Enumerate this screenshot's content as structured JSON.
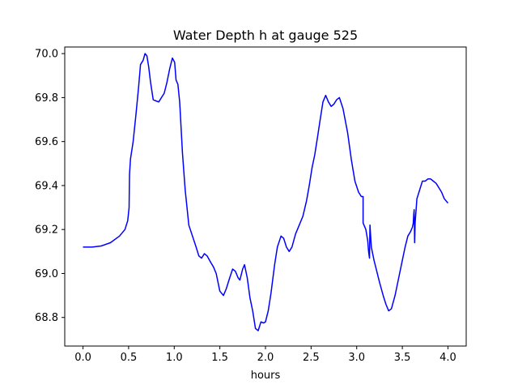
{
  "chart_data": {
    "type": "line",
    "title": "Water Depth h at gauge 525",
    "xlabel": "hours",
    "ylabel": "",
    "xlim": [
      -0.2,
      4.2
    ],
    "ylim": [
      68.67,
      70.03
    ],
    "x_ticks": [
      0.0,
      0.5,
      1.0,
      1.5,
      2.0,
      2.5,
      3.0,
      3.5,
      4.0
    ],
    "x_tick_labels": [
      "0.0",
      "0.5",
      "1.0",
      "1.5",
      "2.0",
      "2.5",
      "3.0",
      "3.5",
      "4.0"
    ],
    "y_ticks": [
      68.8,
      69.0,
      69.2,
      69.4,
      69.6,
      69.8,
      70.0
    ],
    "y_tick_labels": [
      "68.8",
      "69.0",
      "69.2",
      "69.4",
      "69.6",
      "69.8",
      "70.0"
    ],
    "grid": false,
    "series": [
      {
        "color": "#0000ff",
        "x": [
          0.0,
          0.1,
          0.2,
          0.3,
          0.4,
          0.46,
          0.49,
          0.505,
          0.51,
          0.52,
          0.55,
          0.58,
          0.61,
          0.63,
          0.66,
          0.68,
          0.7,
          0.72,
          0.74,
          0.77,
          0.8,
          0.83,
          0.86,
          0.89,
          0.92,
          0.95,
          0.98,
          1.005,
          1.02,
          1.04,
          1.06,
          1.09,
          1.12,
          1.16,
          1.2,
          1.24,
          1.27,
          1.3,
          1.33,
          1.36,
          1.4,
          1.43,
          1.46,
          1.5,
          1.54,
          1.57,
          1.6,
          1.64,
          1.67,
          1.7,
          1.72,
          1.75,
          1.77,
          1.8,
          1.83,
          1.86,
          1.89,
          1.92,
          1.95,
          1.98,
          2.0,
          2.03,
          2.06,
          2.1,
          2.13,
          2.17,
          2.2,
          2.23,
          2.26,
          2.29,
          2.33,
          2.37,
          2.41,
          2.45,
          2.48,
          2.51,
          2.54,
          2.57,
          2.6,
          2.63,
          2.66,
          2.69,
          2.72,
          2.75,
          2.78,
          2.81,
          2.85,
          2.9,
          2.94,
          2.98,
          3.02,
          3.05,
          3.07,
          3.07,
          3.1,
          3.12,
          3.13,
          3.14,
          3.145,
          3.16,
          3.19,
          3.22,
          3.25,
          3.29,
          3.32,
          3.35,
          3.38,
          3.42,
          3.46,
          3.5,
          3.53,
          3.56,
          3.59,
          3.61,
          3.62,
          3.625,
          3.63,
          3.635,
          3.64,
          3.66,
          3.69,
          3.72,
          3.75,
          3.78,
          3.81,
          3.84,
          3.87,
          3.9,
          3.93,
          3.96,
          4.0
        ],
        "y": [
          69.12,
          69.12,
          69.125,
          69.14,
          69.17,
          69.2,
          69.24,
          69.3,
          69.45,
          69.52,
          69.6,
          69.72,
          69.85,
          69.95,
          69.97,
          70.0,
          69.99,
          69.94,
          69.87,
          69.79,
          69.785,
          69.78,
          69.8,
          69.82,
          69.87,
          69.93,
          69.98,
          69.96,
          69.88,
          69.86,
          69.78,
          69.55,
          69.38,
          69.22,
          69.17,
          69.12,
          69.08,
          69.07,
          69.09,
          69.08,
          69.05,
          69.03,
          69.0,
          68.92,
          68.9,
          68.93,
          68.97,
          69.02,
          69.01,
          68.98,
          68.97,
          69.02,
          69.04,
          68.98,
          68.89,
          68.83,
          68.75,
          68.74,
          68.78,
          68.775,
          68.78,
          68.83,
          68.91,
          69.04,
          69.12,
          69.17,
          69.16,
          69.12,
          69.1,
          69.12,
          69.18,
          69.22,
          69.26,
          69.33,
          69.4,
          69.48,
          69.54,
          69.62,
          69.7,
          69.78,
          69.81,
          69.78,
          69.76,
          69.77,
          69.79,
          69.8,
          69.75,
          69.64,
          69.52,
          69.42,
          69.37,
          69.35,
          69.35,
          69.23,
          69.2,
          69.15,
          69.1,
          69.07,
          69.22,
          69.12,
          69.06,
          69.01,
          68.96,
          68.9,
          68.86,
          68.83,
          68.84,
          68.9,
          68.98,
          69.06,
          69.12,
          69.17,
          69.19,
          69.21,
          69.23,
          69.27,
          69.29,
          69.14,
          69.23,
          69.34,
          69.38,
          69.42,
          69.42,
          69.43,
          69.43,
          69.42,
          69.41,
          69.39,
          69.37,
          69.34,
          69.32
        ]
      }
    ]
  }
}
